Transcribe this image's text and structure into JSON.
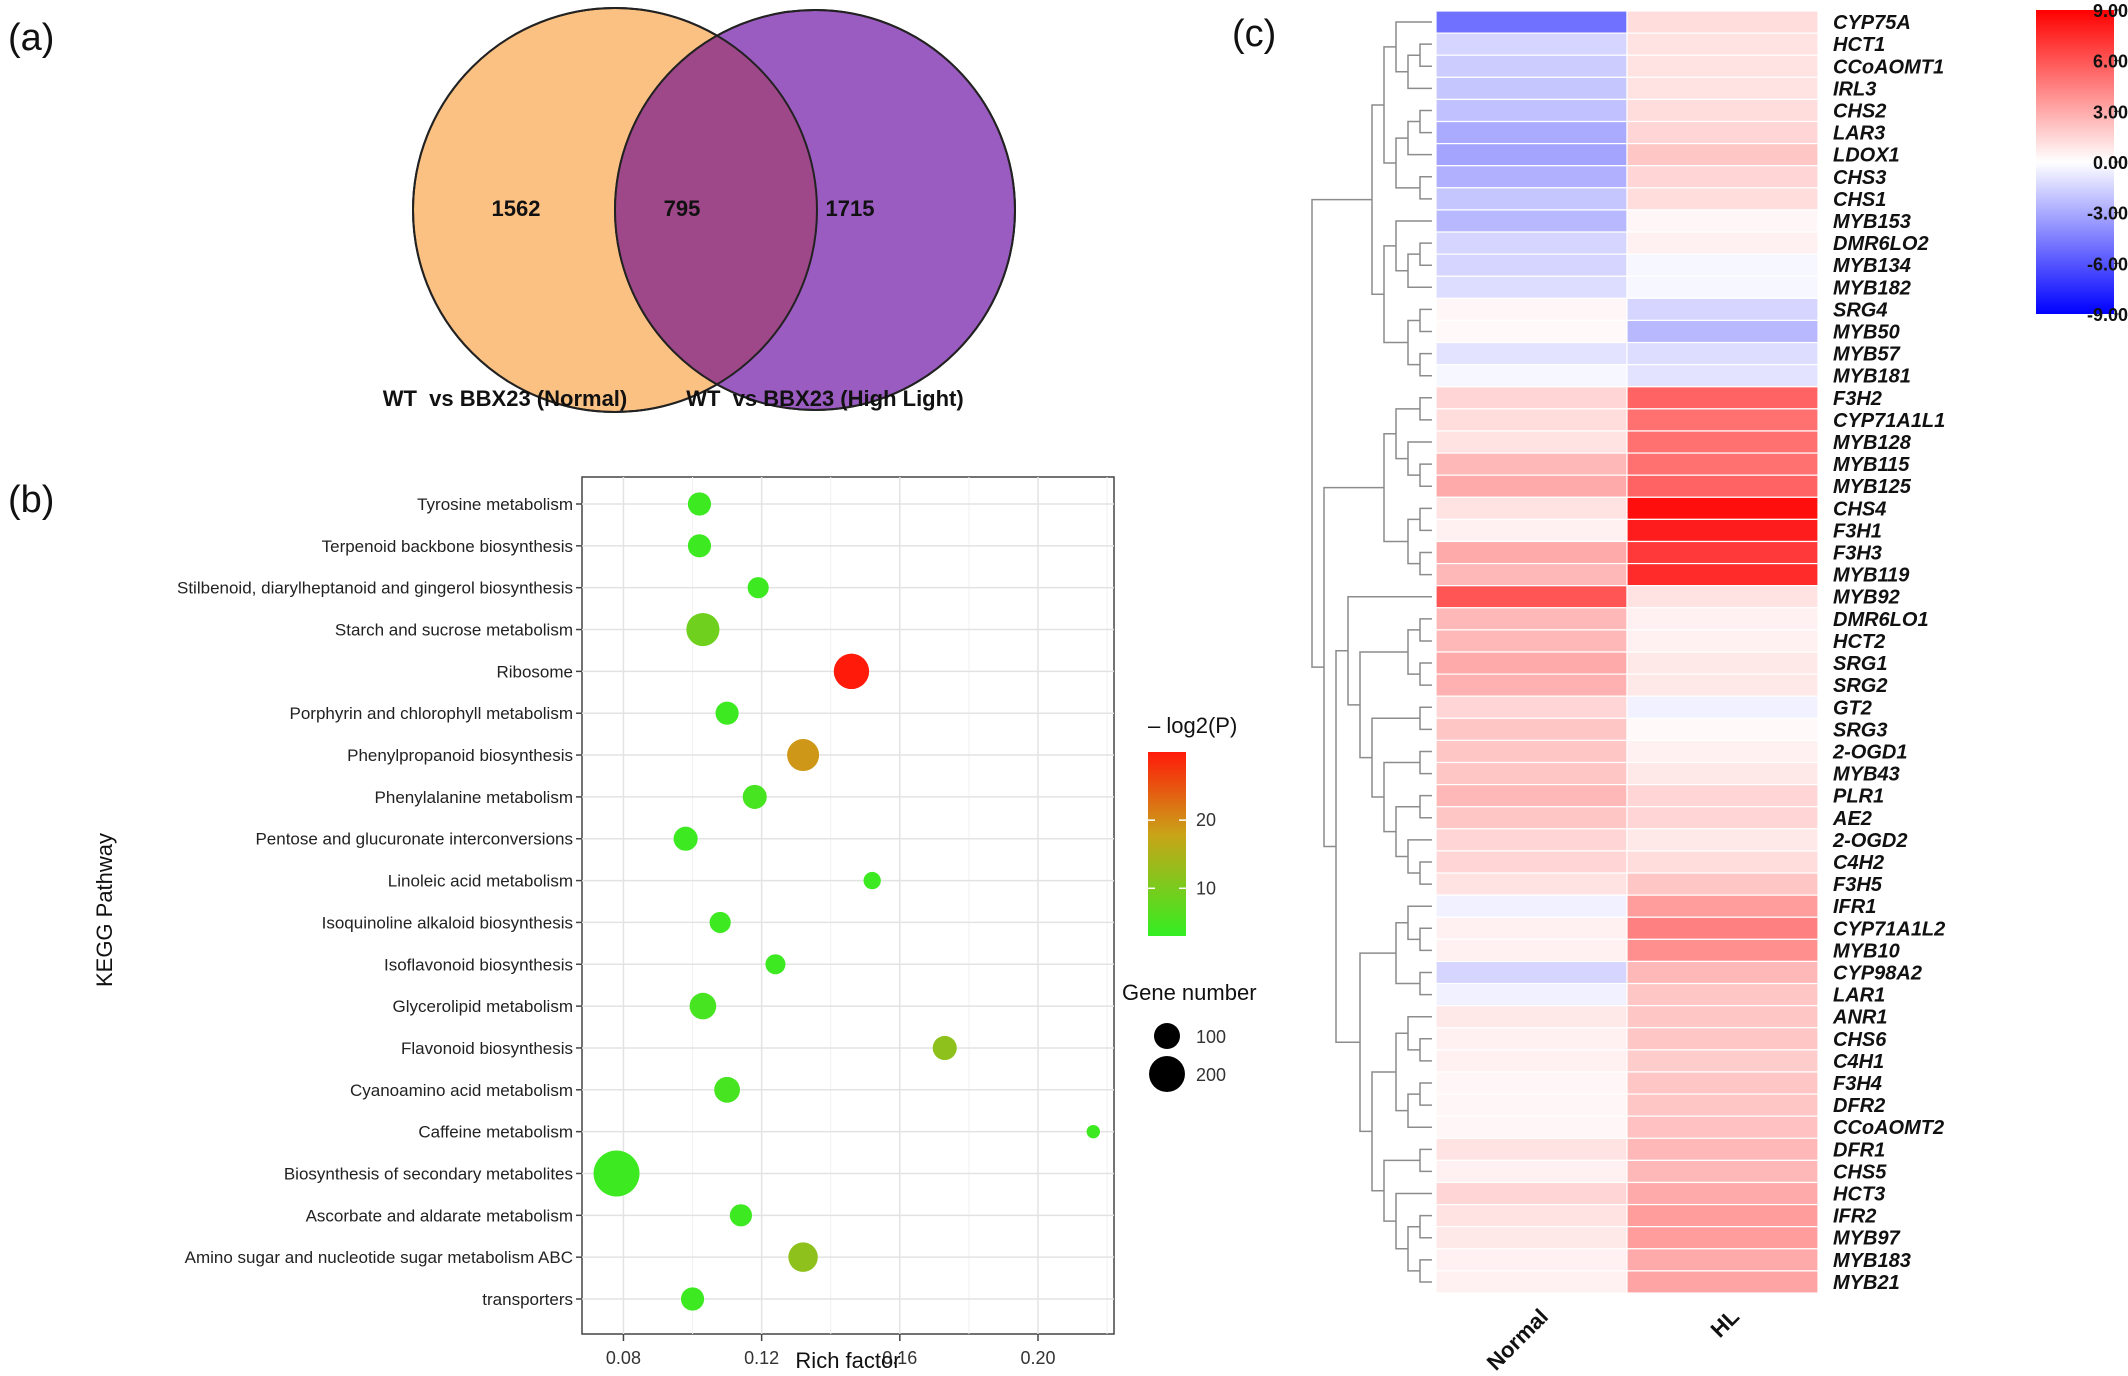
{
  "panel_labels": {
    "a": "(a)",
    "b": "(b)",
    "c": "(c)"
  },
  "venn": {
    "left_count": "1562",
    "overlap_count": "795",
    "right_count": "1715",
    "left_label": "WT  vs BBX23 (Normal)",
    "right_label": "WT  vs BBX23 (High Light)",
    "colors": {
      "left": "#fbc183",
      "right": "#9b5cc2",
      "overlap": "#9e4789"
    }
  },
  "chart_data": [
    {
      "type": "scatter",
      "xlabel": "Rich factor",
      "ylabel": "KEGG Pathway",
      "xlim": [
        0.068,
        0.222
      ],
      "xticks": [
        "0.08",
        "0.12",
        "0.16",
        "0.20"
      ],
      "grid": true,
      "color_legend": {
        "title": "– log2(P)",
        "ticks": [
          "10",
          "20"
        ],
        "range": [
          3,
          30
        ],
        "colors": [
          "#33ee22",
          "#c9a418",
          "#ff1a0a"
        ]
      },
      "size_legend": {
        "title": "Gene number",
        "entries": [
          {
            "label": "100",
            "value": 100
          },
          {
            "label": "200",
            "value": 200
          }
        ]
      },
      "points": [
        {
          "pathway": "Tyrosine metabolism",
          "x": 0.102,
          "genes": 40,
          "log2p": 4
        },
        {
          "pathway": "Terpenoid backbone biosynthesis",
          "x": 0.102,
          "genes": 40,
          "log2p": 4
        },
        {
          "pathway": "Stilbenoid, diarylheptanoid and gingerol biosynthesis",
          "x": 0.119,
          "genes": 30,
          "log2p": 4
        },
        {
          "pathway": "Starch and sucrose metabolism",
          "x": 0.103,
          "genes": 110,
          "log2p": 9
        },
        {
          "pathway": "Ribosome",
          "x": 0.146,
          "genes": 130,
          "log2p": 30
        },
        {
          "pathway": "Porphyrin and chlorophyll metabolism",
          "x": 0.11,
          "genes": 40,
          "log2p": 4
        },
        {
          "pathway": "Phenylpropanoid biosynthesis",
          "x": 0.132,
          "genes": 100,
          "log2p": 19
        },
        {
          "pathway": "Phenylalanine metabolism",
          "x": 0.118,
          "genes": 45,
          "log2p": 5
        },
        {
          "pathway": "Pentose and glucuronate interconversions",
          "x": 0.098,
          "genes": 45,
          "log2p": 4
        },
        {
          "pathway": "Linoleic acid metabolism",
          "x": 0.152,
          "genes": 15,
          "log2p": 4
        },
        {
          "pathway": "Isoquinoline alkaloid biosynthesis",
          "x": 0.108,
          "genes": 30,
          "log2p": 4
        },
        {
          "pathway": "Isoflavonoid biosynthesis",
          "x": 0.124,
          "genes": 25,
          "log2p": 4
        },
        {
          "pathway": "Glycerolipid metabolism",
          "x": 0.103,
          "genes": 60,
          "log2p": 5
        },
        {
          "pathway": "Flavonoid biosynthesis",
          "x": 0.173,
          "genes": 45,
          "log2p": 12
        },
        {
          "pathway": "Cyanoamino acid metabolism",
          "x": 0.11,
          "genes": 55,
          "log2p": 5
        },
        {
          "pathway": "Caffeine metabolism",
          "x": 0.216,
          "genes": 5,
          "log2p": 4
        },
        {
          "pathway": "Biosynthesis of secondary metabolites",
          "x": 0.078,
          "genes": 250,
          "log2p": 4
        },
        {
          "pathway": "Ascorbate and aldarate metabolism",
          "x": 0.114,
          "genes": 35,
          "log2p": 4
        },
        {
          "pathway": "Amino sugar and nucleotide sugar metabolism ABC",
          "x": 0.132,
          "genes": 80,
          "log2p": 12
        },
        {
          "pathway": "transporters",
          "x": 0.1,
          "genes": 40,
          "log2p": 4
        }
      ]
    },
    {
      "type": "heatmap",
      "columns": [
        "Normal",
        "HL"
      ],
      "color_scale": {
        "min": -9,
        "max": 9,
        "ticks": [
          "9.00",
          "6.00",
          "3.00",
          "0.00",
          "-3.00",
          "-6.00",
          "-9.00"
        ],
        "low": "#0000ff",
        "mid": "#ffffff",
        "high": "#ff0000"
      },
      "rows": [
        {
          "gene": "CYP75A",
          "values": [
            -5.0,
            1.2
          ]
        },
        {
          "gene": "HCT1",
          "values": [
            -1.5,
            1.0
          ]
        },
        {
          "gene": "CCoAOMT1",
          "values": [
            -1.8,
            1.0
          ]
        },
        {
          "gene": "IRL3",
          "values": [
            -2.0,
            1.0
          ]
        },
        {
          "gene": "CHS2",
          "values": [
            -2.2,
            1.2
          ]
        },
        {
          "gene": "LAR3",
          "values": [
            -3.0,
            1.5
          ]
        },
        {
          "gene": "LDOX1",
          "values": [
            -3.2,
            2.0
          ]
        },
        {
          "gene": "CHS3",
          "values": [
            -2.8,
            1.5
          ]
        },
        {
          "gene": "CHS1",
          "values": [
            -2.0,
            1.2
          ]
        },
        {
          "gene": "MYB153",
          "values": [
            -2.5,
            0.3
          ]
        },
        {
          "gene": "DMR6LO2",
          "values": [
            -1.5,
            0.5
          ]
        },
        {
          "gene": "MYB134",
          "values": [
            -1.5,
            -0.3
          ]
        },
        {
          "gene": "MYB182",
          "values": [
            -1.2,
            -0.3
          ]
        },
        {
          "gene": "SRG4",
          "values": [
            0.3,
            -1.5
          ]
        },
        {
          "gene": "MYB50",
          "values": [
            0.2,
            -2.5
          ]
        },
        {
          "gene": "MYB57",
          "values": [
            -1.0,
            -1.2
          ]
        },
        {
          "gene": "MYB181",
          "values": [
            -0.3,
            -1.0
          ]
        },
        {
          "gene": "F3H2",
          "values": [
            1.5,
            5.5
          ]
        },
        {
          "gene": "CYP71A1L1",
          "values": [
            1.2,
            5.0
          ]
        },
        {
          "gene": "MYB128",
          "values": [
            1.0,
            5.0
          ]
        },
        {
          "gene": "MYB115",
          "values": [
            2.5,
            5.0
          ]
        },
        {
          "gene": "MYB125",
          "values": [
            3.0,
            5.5
          ]
        },
        {
          "gene": "CHS4",
          "values": [
            1.0,
            8.5
          ]
        },
        {
          "gene": "F3H1",
          "values": [
            0.5,
            8.0
          ]
        },
        {
          "gene": "F3H3",
          "values": [
            3.0,
            7.0
          ]
        },
        {
          "gene": "MYB119",
          "values": [
            2.5,
            7.5
          ]
        },
        {
          "gene": "MYB92",
          "values": [
            6.0,
            1.0
          ]
        },
        {
          "gene": "DMR6LO1",
          "values": [
            2.5,
            0.5
          ]
        },
        {
          "gene": "HCT2",
          "values": [
            2.5,
            0.5
          ]
        },
        {
          "gene": "SRG1",
          "values": [
            3.0,
            0.8
          ]
        },
        {
          "gene": "SRG2",
          "values": [
            2.8,
            0.8
          ]
        },
        {
          "gene": "GT2",
          "values": [
            1.5,
            -0.5
          ]
        },
        {
          "gene": "SRG3",
          "values": [
            2.0,
            0.2
          ]
        },
        {
          "gene": "2-OGD1",
          "values": [
            2.0,
            0.5
          ]
        },
        {
          "gene": "MYB43",
          "values": [
            2.0,
            0.8
          ]
        },
        {
          "gene": "PLR1",
          "values": [
            2.5,
            1.5
          ]
        },
        {
          "gene": "AE2",
          "values": [
            2.0,
            1.5
          ]
        },
        {
          "gene": "2-OGD2",
          "values": [
            1.5,
            0.8
          ]
        },
        {
          "gene": "C4H2",
          "values": [
            1.5,
            1.2
          ]
        },
        {
          "gene": "F3H5",
          "values": [
            1.0,
            2.0
          ]
        },
        {
          "gene": "IFR1",
          "values": [
            -0.5,
            3.5
          ]
        },
        {
          "gene": "CYP71A1L2",
          "values": [
            0.5,
            4.5
          ]
        },
        {
          "gene": "MYB10",
          "values": [
            0.5,
            4.0
          ]
        },
        {
          "gene": "CYP98A2",
          "values": [
            -1.5,
            2.5
          ]
        },
        {
          "gene": "LAR1",
          "values": [
            -0.5,
            2.0
          ]
        },
        {
          "gene": "ANR1",
          "values": [
            0.8,
            2.0
          ]
        },
        {
          "gene": "CHS6",
          "values": [
            0.5,
            2.0
          ]
        },
        {
          "gene": "C4H1",
          "values": [
            0.5,
            1.8
          ]
        },
        {
          "gene": "F3H4",
          "values": [
            0.3,
            2.0
          ]
        },
        {
          "gene": "DFR2",
          "values": [
            0.3,
            2.0
          ]
        },
        {
          "gene": "CCoAOMT2",
          "values": [
            0.3,
            2.2
          ]
        },
        {
          "gene": "DFR1",
          "values": [
            1.0,
            2.5
          ]
        },
        {
          "gene": "CHS5",
          "values": [
            0.5,
            2.5
          ]
        },
        {
          "gene": "HCT3",
          "values": [
            1.5,
            3.0
          ]
        },
        {
          "gene": "IFR2",
          "values": [
            1.0,
            3.5
          ]
        },
        {
          "gene": "MYB97",
          "values": [
            0.8,
            3.5
          ]
        },
        {
          "gene": "MYB183",
          "values": [
            0.5,
            3.0
          ]
        },
        {
          "gene": "MYB21",
          "values": [
            0.5,
            3.2
          ]
        }
      ]
    }
  ]
}
